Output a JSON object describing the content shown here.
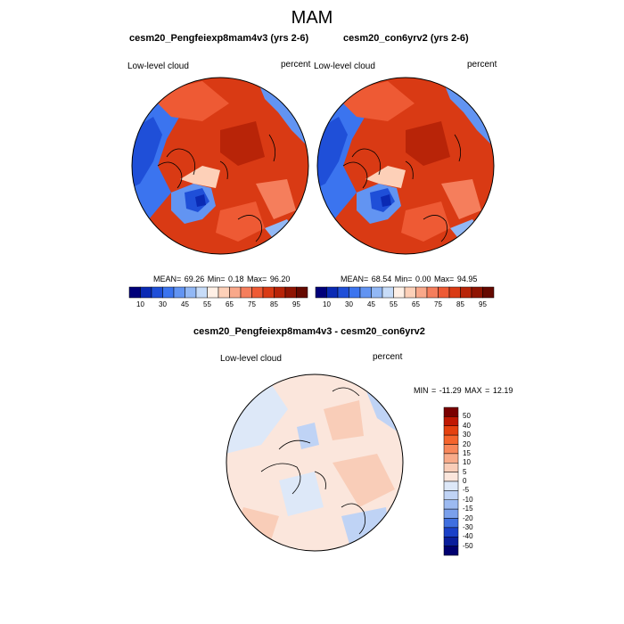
{
  "main_title": "MAM",
  "panels": [
    {
      "title": "cesm20_Pengfeiexp8mam4v3 (yrs 2-6)",
      "left_label": "Low-level cloud",
      "right_label": "percent",
      "stats": "MEAN=  69.26  Min=   0.18  Max=  96.20",
      "mean": 69.26,
      "min": 0.18,
      "max": 96.2
    },
    {
      "title": "cesm20_con6yrv2 (yrs 2-6)",
      "left_label": "Low-level cloud",
      "right_label": "percent",
      "stats": "MEAN=  68.54  Min=   0.00  Max=  94.95",
      "mean": 68.54,
      "min": 0.0,
      "max": 94.95
    },
    {
      "title": "cesm20_Pengfeiexp8mam4v3 - cesm20_con6yrv2",
      "left_label": "Low-level cloud",
      "right_label": "percent",
      "stats": "MIN = -11.29 MAX =  12.19",
      "min": -11.29,
      "max": 12.19
    }
  ],
  "colorbar_abs": {
    "tick_labels": [
      "10",
      "30",
      "45",
      "55",
      "65",
      "75",
      "85",
      "95"
    ],
    "colors": [
      "#00007a",
      "#0a2ab4",
      "#1f4fd8",
      "#3b74ef",
      "#6294f2",
      "#92b8f5",
      "#c7dcf8",
      "#fff0e6",
      "#fdd0b8",
      "#f9a88a",
      "#f57e5c",
      "#ee5a34",
      "#d93a14",
      "#b82408",
      "#8f1402",
      "#650900"
    ]
  },
  "colorbar_diff": {
    "tick_labels": [
      "50",
      "40",
      "30",
      "20",
      "15",
      "10",
      "5",
      "0",
      "-5",
      "-10",
      "-15",
      "-20",
      "-30",
      "-40",
      "-50"
    ],
    "colors": [
      "#7a0000",
      "#c01802",
      "#e5410f",
      "#f5642c",
      "#f8875a",
      "#f8ab8a",
      "#f9cdb8",
      "#fbe6dc",
      "#dde8f8",
      "#bfd3f5",
      "#9cbaf1",
      "#7aa0ec",
      "#3f6fe0",
      "#1a40c8",
      "#0a1e9c",
      "#000070"
    ]
  }
}
